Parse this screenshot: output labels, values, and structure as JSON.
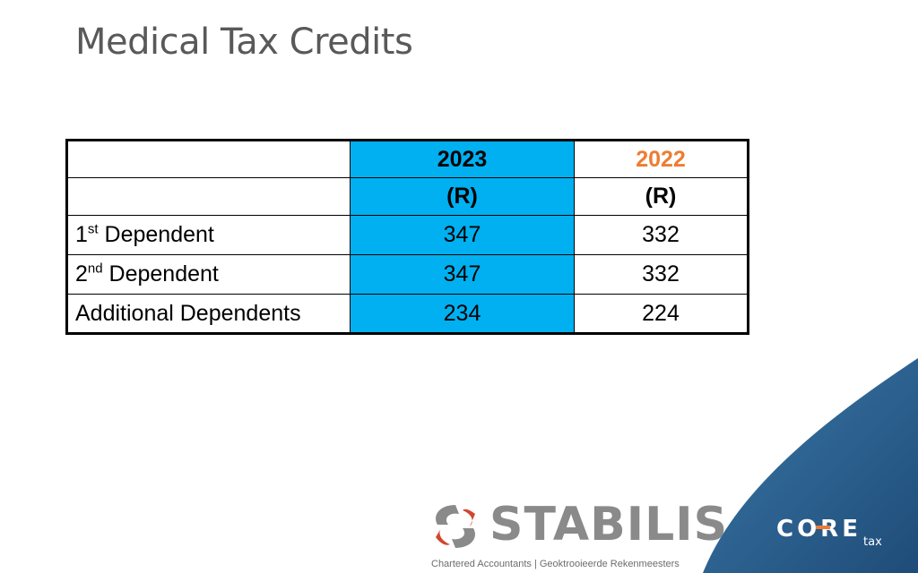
{
  "title": "Medical Tax Credits",
  "table": {
    "header_years": [
      "2023",
      "2022"
    ],
    "header_units": [
      "(R)",
      "(R)"
    ],
    "rows": [
      {
        "label": "1",
        "suffix": "st",
        "rest": " Dependent",
        "v2023": "347",
        "v2022": "332"
      },
      {
        "label": "2",
        "suffix": "nd",
        "rest": " Dependent",
        "v2023": "347",
        "v2022": "332"
      },
      {
        "label": "Additional Dependents",
        "suffix": "",
        "rest": "",
        "v2023": "234",
        "v2022": "224"
      }
    ]
  },
  "branding": {
    "stabilis_name": "STABILIS",
    "stabilis_tagline": "Chartered Accountants | Geoktrooieerde Rekenmeesters",
    "core_name": "CORE",
    "core_sub": "tax"
  },
  "colors": {
    "highlight_2023": "#00b0f0",
    "accent_2022": "#ed7d31",
    "title_gray": "#595959",
    "band_blue": "#2e5f8a"
  }
}
